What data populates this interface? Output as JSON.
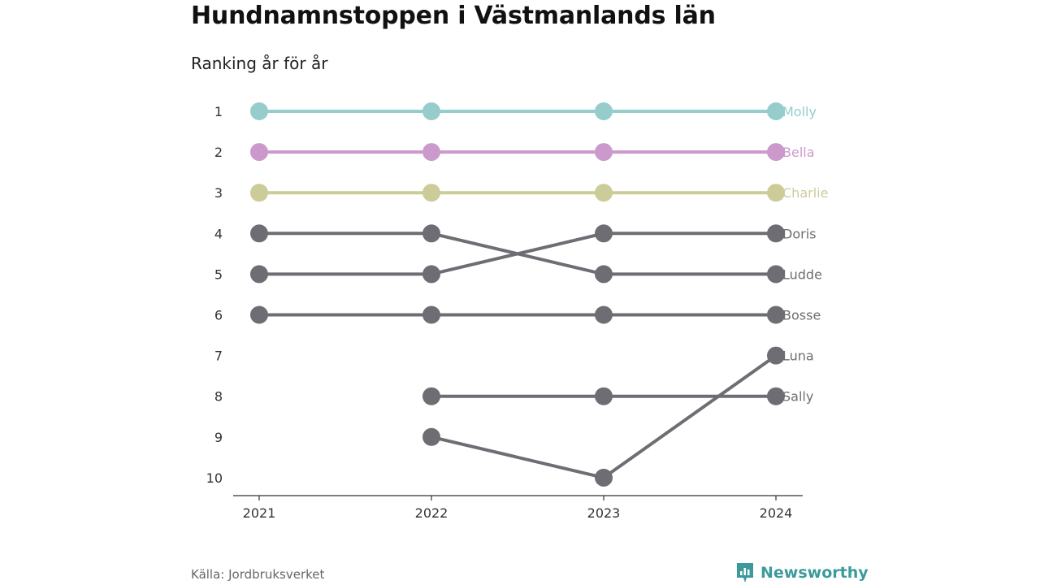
{
  "title": "Hundnamnstoppen i Västmanlands län",
  "subtitle": "Ranking år för år",
  "source": "Källa: Jordbruksverket",
  "brand": {
    "name": "Newsworthy",
    "color": "#3d9a9b",
    "icon": "newsworthy-logo-icon"
  },
  "chart_data": {
    "type": "line",
    "title": "Hundnamnstoppen i Västmanlands län",
    "subtitle": "Ranking år för år",
    "x": [
      "2021",
      "2022",
      "2023",
      "2024"
    ],
    "y_ticks": [
      1,
      2,
      3,
      4,
      5,
      6,
      7,
      8,
      9,
      10
    ],
    "ylim": [
      1,
      10
    ],
    "y_inverted": true,
    "grid": false,
    "series": [
      {
        "name": "Molly",
        "color": "#96cccc",
        "values": [
          1,
          1,
          1,
          1
        ]
      },
      {
        "name": "Bella",
        "color": "#cc99cc",
        "values": [
          2,
          2,
          2,
          2
        ]
      },
      {
        "name": "Charlie",
        "color": "#cccc99",
        "values": [
          3,
          3,
          3,
          3
        ]
      },
      {
        "name": "Doris",
        "color": "#6e6d73",
        "values": [
          5,
          5,
          4,
          4
        ]
      },
      {
        "name": "Ludde",
        "color": "#6e6d73",
        "values": [
          4,
          4,
          5,
          5
        ]
      },
      {
        "name": "Bosse",
        "color": "#6e6d73",
        "values": [
          6,
          6,
          6,
          6
        ]
      },
      {
        "name": "Luna",
        "color": "#6e6d73",
        "values": [
          null,
          9,
          10,
          7
        ]
      },
      {
        "name": "Sally",
        "color": "#6e6d73",
        "values": [
          null,
          8,
          8,
          8
        ]
      }
    ]
  }
}
